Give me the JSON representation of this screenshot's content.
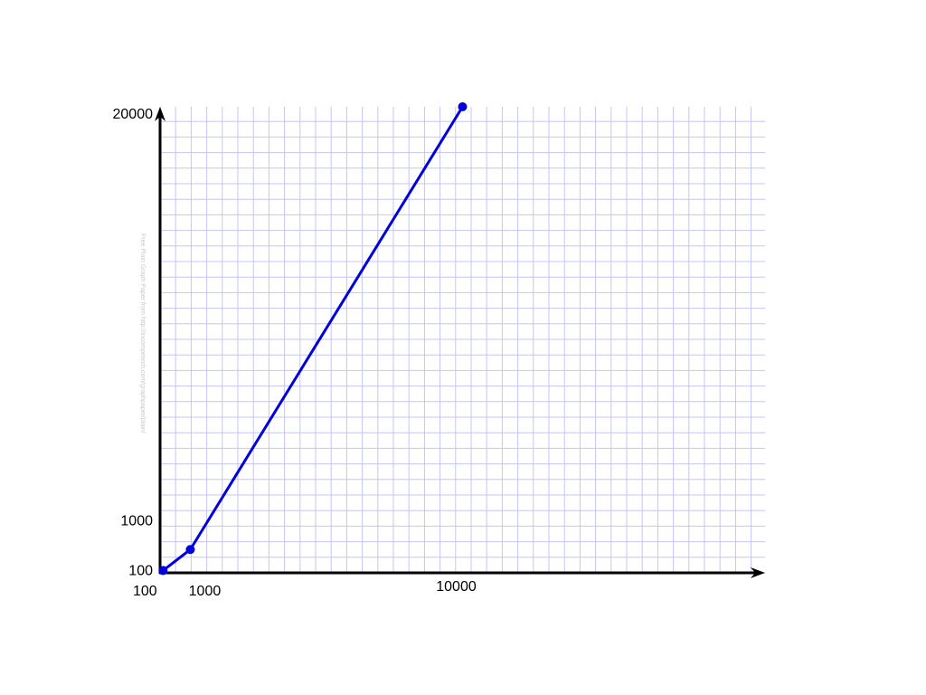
{
  "chart_data": {
    "type": "line",
    "title": "",
    "xlabel": "",
    "ylabel": "",
    "x_ticks": [
      {
        "value": 100,
        "label": "100"
      },
      {
        "value": 1000,
        "label": "1000"
      },
      {
        "value": 10000,
        "label": "10000"
      }
    ],
    "y_ticks": [
      {
        "value": 100,
        "label": "100"
      },
      {
        "value": 1000,
        "label": "1000"
      },
      {
        "value": 20000,
        "label": "20000"
      }
    ],
    "xlim": [
      0,
      20000
    ],
    "ylim": [
      0,
      20000
    ],
    "grid": true,
    "series": [
      {
        "points": [
          {
            "x": 100,
            "y": 100
          },
          {
            "x": 1000,
            "y": 1000
          },
          {
            "x": 10000,
            "y": 20000
          }
        ]
      }
    ],
    "watermark": "Free Plain Graph Paper from http://incompetech.com/graphpaper/plain/",
    "colors": {
      "line": "#0000dd",
      "grid": "#c5c5f5",
      "axis": "#000000"
    }
  }
}
